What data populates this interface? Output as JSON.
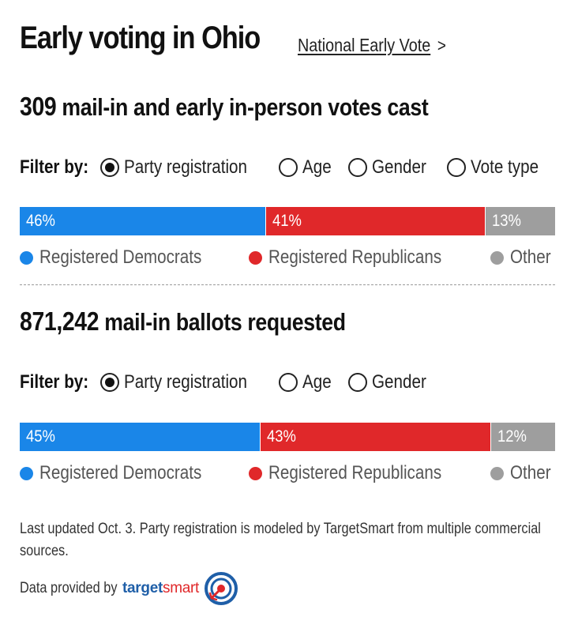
{
  "header": {
    "title": "Early voting in Ohio",
    "link_label": "National Early Vote",
    "link_chevron": ">"
  },
  "sections": [
    {
      "count": "309",
      "title_rest": "mail-in and early in-person votes cast",
      "filter_label": "Filter by:",
      "filters": [
        {
          "label": "Party registration",
          "selected": true
        },
        {
          "label": "Age",
          "selected": false
        },
        {
          "label": "Gender",
          "selected": false
        },
        {
          "label": "Vote type",
          "selected": false
        }
      ]
    },
    {
      "count": "871,242",
      "title_rest": "mail-in ballots requested",
      "filter_label": "Filter by:",
      "filters": [
        {
          "label": "Party registration",
          "selected": true
        },
        {
          "label": "Age",
          "selected": false
        },
        {
          "label": "Gender",
          "selected": false
        }
      ]
    }
  ],
  "chart_data": [
    {
      "type": "bar",
      "orientation": "horizontal-stacked",
      "categories": [
        "Registered Democrats",
        "Registered Republicans",
        "Other"
      ],
      "values": [
        46,
        41,
        13
      ],
      "labels": [
        "46%",
        "41%",
        "13%"
      ],
      "colors": [
        "#1a86e8",
        "#e0282a",
        "#9e9e9e"
      ],
      "legend": "bottom"
    },
    {
      "type": "bar",
      "orientation": "horizontal-stacked",
      "categories": [
        "Registered Democrats",
        "Registered Republicans",
        "Other"
      ],
      "values": [
        45,
        43,
        12
      ],
      "labels": [
        "45%",
        "43%",
        "12%"
      ],
      "colors": [
        "#1a86e8",
        "#e0282a",
        "#9e9e9e"
      ],
      "legend": "bottom"
    }
  ],
  "footer": {
    "note": "Last updated Oct. 3. Party registration is modeled by TargetSmart from multiple commercial sources.",
    "provided_by": "Data provided by",
    "provider_brand_prefix": "target",
    "provider_brand_suffix": "smart"
  }
}
